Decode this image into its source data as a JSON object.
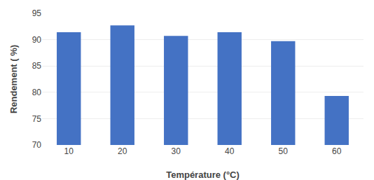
{
  "chart_data": {
    "type": "bar",
    "xlabel": "Température (°C)",
    "ylabel": "Rendement ( %)",
    "categories": [
      "10",
      "20",
      "30",
      "40",
      "50",
      "60"
    ],
    "values": [
      91.4,
      92.7,
      90.7,
      91.4,
      89.7,
      79.3
    ],
    "color": "#4472c4",
    "ylim": [
      70,
      95
    ],
    "yticks": [
      70,
      75,
      80,
      85,
      90,
      95
    ],
    "grid": true
  }
}
